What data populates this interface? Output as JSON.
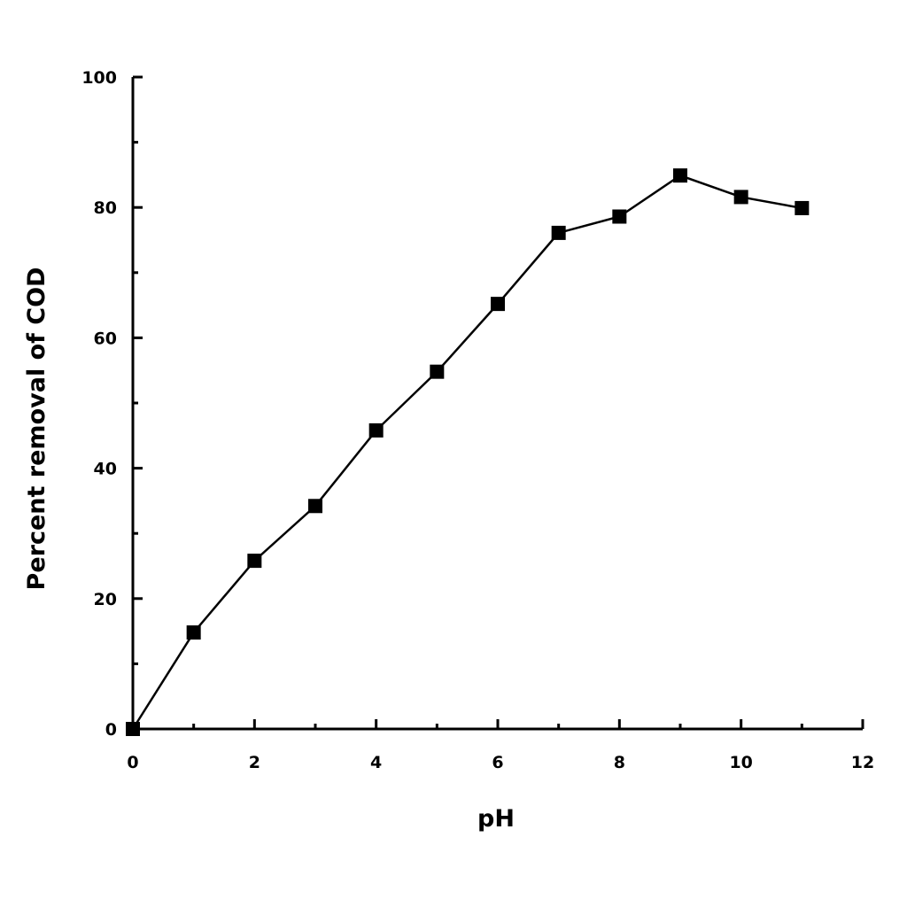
{
  "chart_data": {
    "type": "line",
    "title": "",
    "xlabel": "pH",
    "ylabel": "Percent removal of COD",
    "xlim": [
      0,
      12
    ],
    "ylim": [
      0,
      100
    ],
    "x_ticks": [
      0,
      2,
      4,
      6,
      8,
      10,
      12
    ],
    "x_tick_labels": [
      "0",
      "2",
      "4",
      "6",
      "8",
      "10",
      "12"
    ],
    "y_ticks": [
      0,
      20,
      40,
      60,
      80,
      100
    ],
    "y_tick_labels": [
      "0",
      "20",
      "40",
      "60",
      "80",
      "100"
    ],
    "grid": false,
    "legend": "none",
    "series": [
      {
        "marker": "square",
        "color": "#000000",
        "x": [
          0,
          1,
          2,
          3,
          4,
          5,
          6,
          7,
          8,
          9,
          10,
          11
        ],
        "y": [
          0,
          14.8,
          25.8,
          34.2,
          45.8,
          54.8,
          65.2,
          76.1,
          78.6,
          84.9,
          81.6,
          79.9
        ]
      }
    ]
  }
}
